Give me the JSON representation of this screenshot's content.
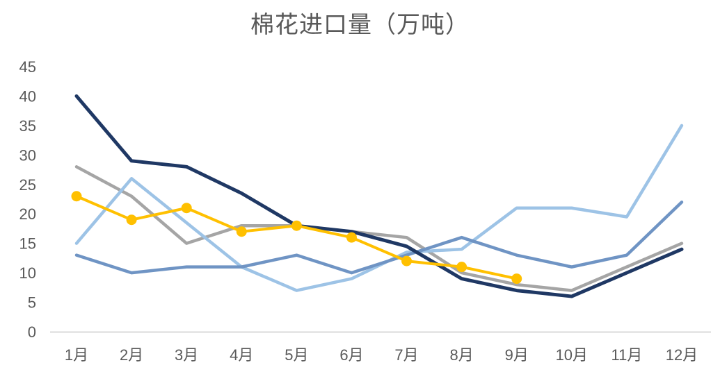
{
  "title": "棉花进口量（万吨）",
  "chart_data": {
    "type": "line",
    "title": "棉花进口量（万吨）",
    "categories": [
      "1月",
      "2月",
      "3月",
      "4月",
      "5月",
      "6月",
      "7月",
      "8月",
      "9月",
      "10月",
      "11月",
      "12月"
    ],
    "series": [
      {
        "name": "gray-line",
        "color": "#A5A5A5",
        "width": 4.5,
        "markers": false,
        "values": [
          28,
          23,
          15,
          18,
          18,
          17,
          16,
          10,
          8,
          7,
          11,
          15
        ]
      },
      {
        "name": "light-blue-line",
        "color": "#9DC3E6",
        "width": 4.5,
        "markers": false,
        "values": [
          15,
          26,
          18.5,
          11,
          7,
          9,
          13.5,
          14,
          21,
          21,
          19.5,
          35
        ]
      },
      {
        "name": "medium-blue-line",
        "color": "#6F94C4",
        "width": 4.5,
        "markers": false,
        "values": [
          13,
          10,
          11,
          11,
          13,
          10,
          13,
          16,
          13,
          11,
          13,
          22
        ]
      },
      {
        "name": "dark-navy-line",
        "color": "#1F3864",
        "width": 5,
        "markers": false,
        "values": [
          40,
          29,
          28,
          23.5,
          18,
          17,
          14.5,
          9,
          7,
          6,
          10,
          14
        ]
      },
      {
        "name": "gold-marker-line",
        "color": "#FFC000",
        "width": 4,
        "markers": true,
        "values": [
          23,
          19,
          21,
          17,
          18,
          16,
          12,
          11,
          9,
          null,
          null,
          null
        ]
      }
    ],
    "ylim": [
      0,
      45
    ],
    "yticks": [
      0,
      5,
      10,
      15,
      20,
      25,
      30,
      35,
      40,
      45
    ],
    "grid": false,
    "legend": "none",
    "axis_color": "#D9D9D9",
    "tick_label_color": "#595959",
    "title_color": "#595959",
    "marker_radius": 7.5
  }
}
